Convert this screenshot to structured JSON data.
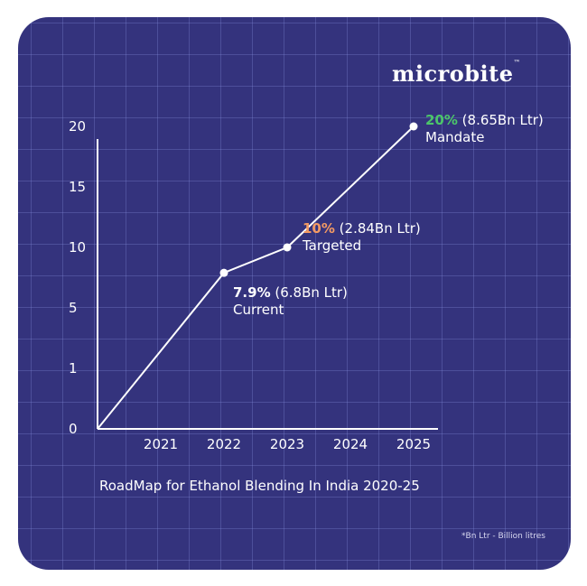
{
  "brand": {
    "name": "microbite",
    "trademark": "™"
  },
  "caption": "RoadMap for Ethanol Blending In India 2020-25",
  "footnote": "*Bn Ltr - Billion litres",
  "colors": {
    "background": "#34337d",
    "grid": "#6f73c8",
    "green": "#4cc66a",
    "orange": "#f39a63",
    "line": "#ffffff"
  },
  "chart_data": {
    "type": "line",
    "x_ticks": [
      "2021",
      "2022",
      "2023",
      "2024",
      "2025"
    ],
    "y_ticks": [
      "0",
      "1",
      "5",
      "10",
      "15",
      "20"
    ],
    "series": [
      {
        "x": [
          "2020",
          "2022",
          "2023",
          "2025"
        ],
        "y": [
          0,
          7.9,
          10,
          20
        ]
      }
    ],
    "annotations": [
      {
        "x": "2022",
        "y": 7.9,
        "value": "7.9%",
        "detail": "(6.8Bn Ltr)",
        "label": "Current",
        "value_color": "#ffffff"
      },
      {
        "x": "2023",
        "y": 10,
        "value": "10%",
        "detail": "(2.84Bn Ltr)",
        "label": "Targeted",
        "value_color": "#f39a63"
      },
      {
        "x": "2025",
        "y": 20,
        "value": "20%",
        "detail": "(8.65Bn Ltr)",
        "label": "Mandate",
        "value_color": "#4cc66a"
      }
    ],
    "grid": true
  }
}
